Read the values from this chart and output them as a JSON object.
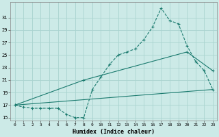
{
  "xlabel": "Humidex (Indice chaleur)",
  "background_color": "#cceae7",
  "grid_color": "#aad4d0",
  "line_color": "#1a7a6e",
  "xlim": [
    -0.5,
    23.5
  ],
  "ylim": [
    14.5,
    33.5
  ],
  "yticks": [
    15,
    17,
    19,
    21,
    23,
    25,
    27,
    29,
    31
  ],
  "xticks": [
    0,
    1,
    2,
    3,
    4,
    5,
    6,
    7,
    8,
    9,
    10,
    11,
    12,
    13,
    14,
    15,
    16,
    17,
    18,
    19,
    20,
    21,
    22,
    23
  ],
  "series1_x": [
    0,
    1,
    2,
    3,
    4,
    5,
    6,
    7,
    8,
    9,
    10,
    11,
    12,
    13,
    14,
    15,
    16,
    17,
    18,
    19,
    20,
    21,
    22,
    23
  ],
  "series1_y": [
    17.0,
    16.7,
    16.5,
    16.5,
    16.5,
    16.5,
    15.5,
    15.0,
    15.0,
    19.5,
    21.5,
    23.5,
    25.0,
    25.5,
    26.0,
    27.5,
    29.5,
    32.5,
    30.5,
    30.0,
    26.5,
    24.0,
    22.5,
    19.5
  ],
  "series2_x": [
    0,
    8,
    20,
    23
  ],
  "series2_y": [
    17.0,
    21.0,
    25.5,
    22.5
  ],
  "series3_x": [
    0,
    23
  ],
  "series3_y": [
    17.0,
    19.5
  ]
}
